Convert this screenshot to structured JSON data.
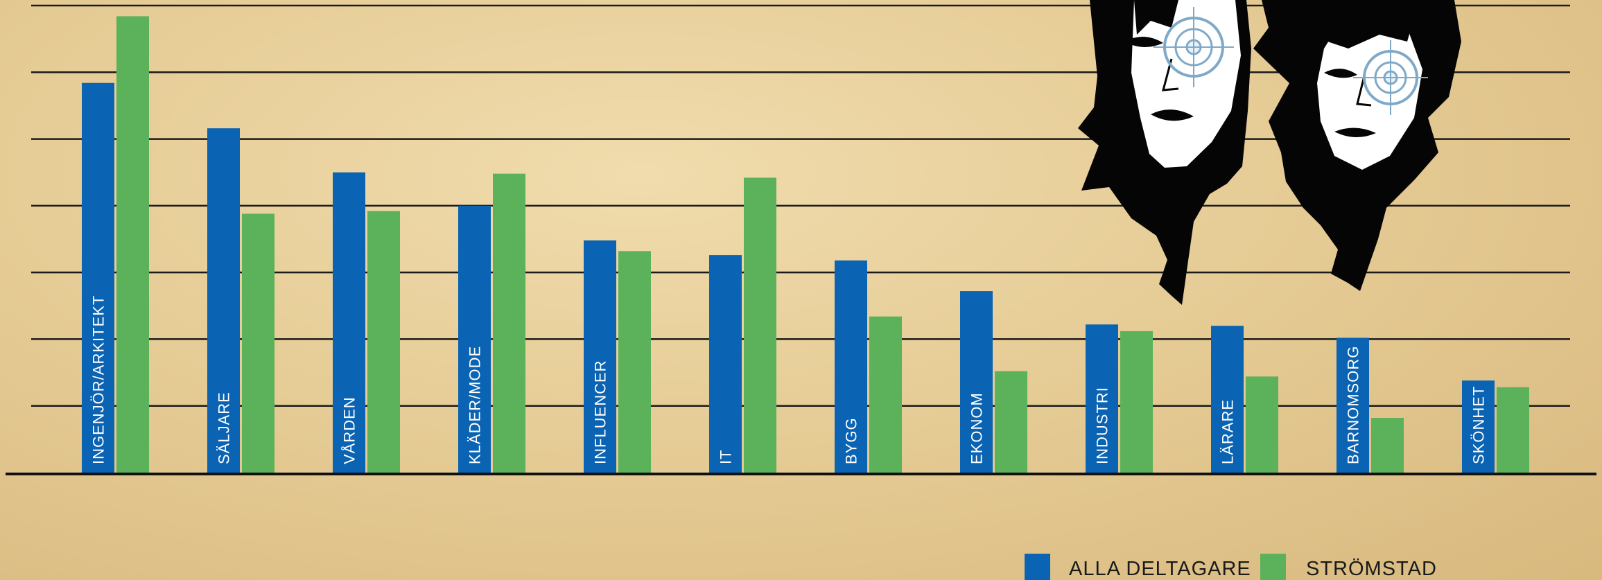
{
  "chart_data": {
    "type": "bar",
    "categories": [
      "INGENJÖR/ARKITEKT",
      "SÄLJARE",
      "VÅRDEN",
      "KLÄDER/MODE",
      "INFLUENCER",
      "IT",
      "BYGG",
      "EKONOM",
      "INDUSTRI",
      "LÄRARE",
      "BARNOMSORG",
      "SKÖNHET"
    ],
    "series": [
      {
        "name": "ALLA DELTAGARE",
        "values": [
          29.2,
          25.8,
          22.5,
          20.0,
          17.4,
          16.3,
          15.9,
          13.6,
          11.1,
          11.0,
          10.1,
          6.9
        ]
      },
      {
        "name": "STRÖMSTAD",
        "values": [
          34.2,
          19.4,
          19.6,
          22.4,
          16.6,
          22.1,
          11.7,
          7.6,
          10.6,
          7.2,
          4.1,
          6.4
        ]
      }
    ],
    "colors": {
      "ALLA DELTAGARE": "#0a63b3",
      "STRÖMSTAD": "#5cb25a"
    },
    "ylim": [
      0,
      35
    ],
    "grid": true,
    "legend_position": "bottom-right",
    "title": "",
    "xlabel": "",
    "ylabel": ""
  },
  "decor": {
    "illustration_icon": "two-faces-illustration"
  }
}
